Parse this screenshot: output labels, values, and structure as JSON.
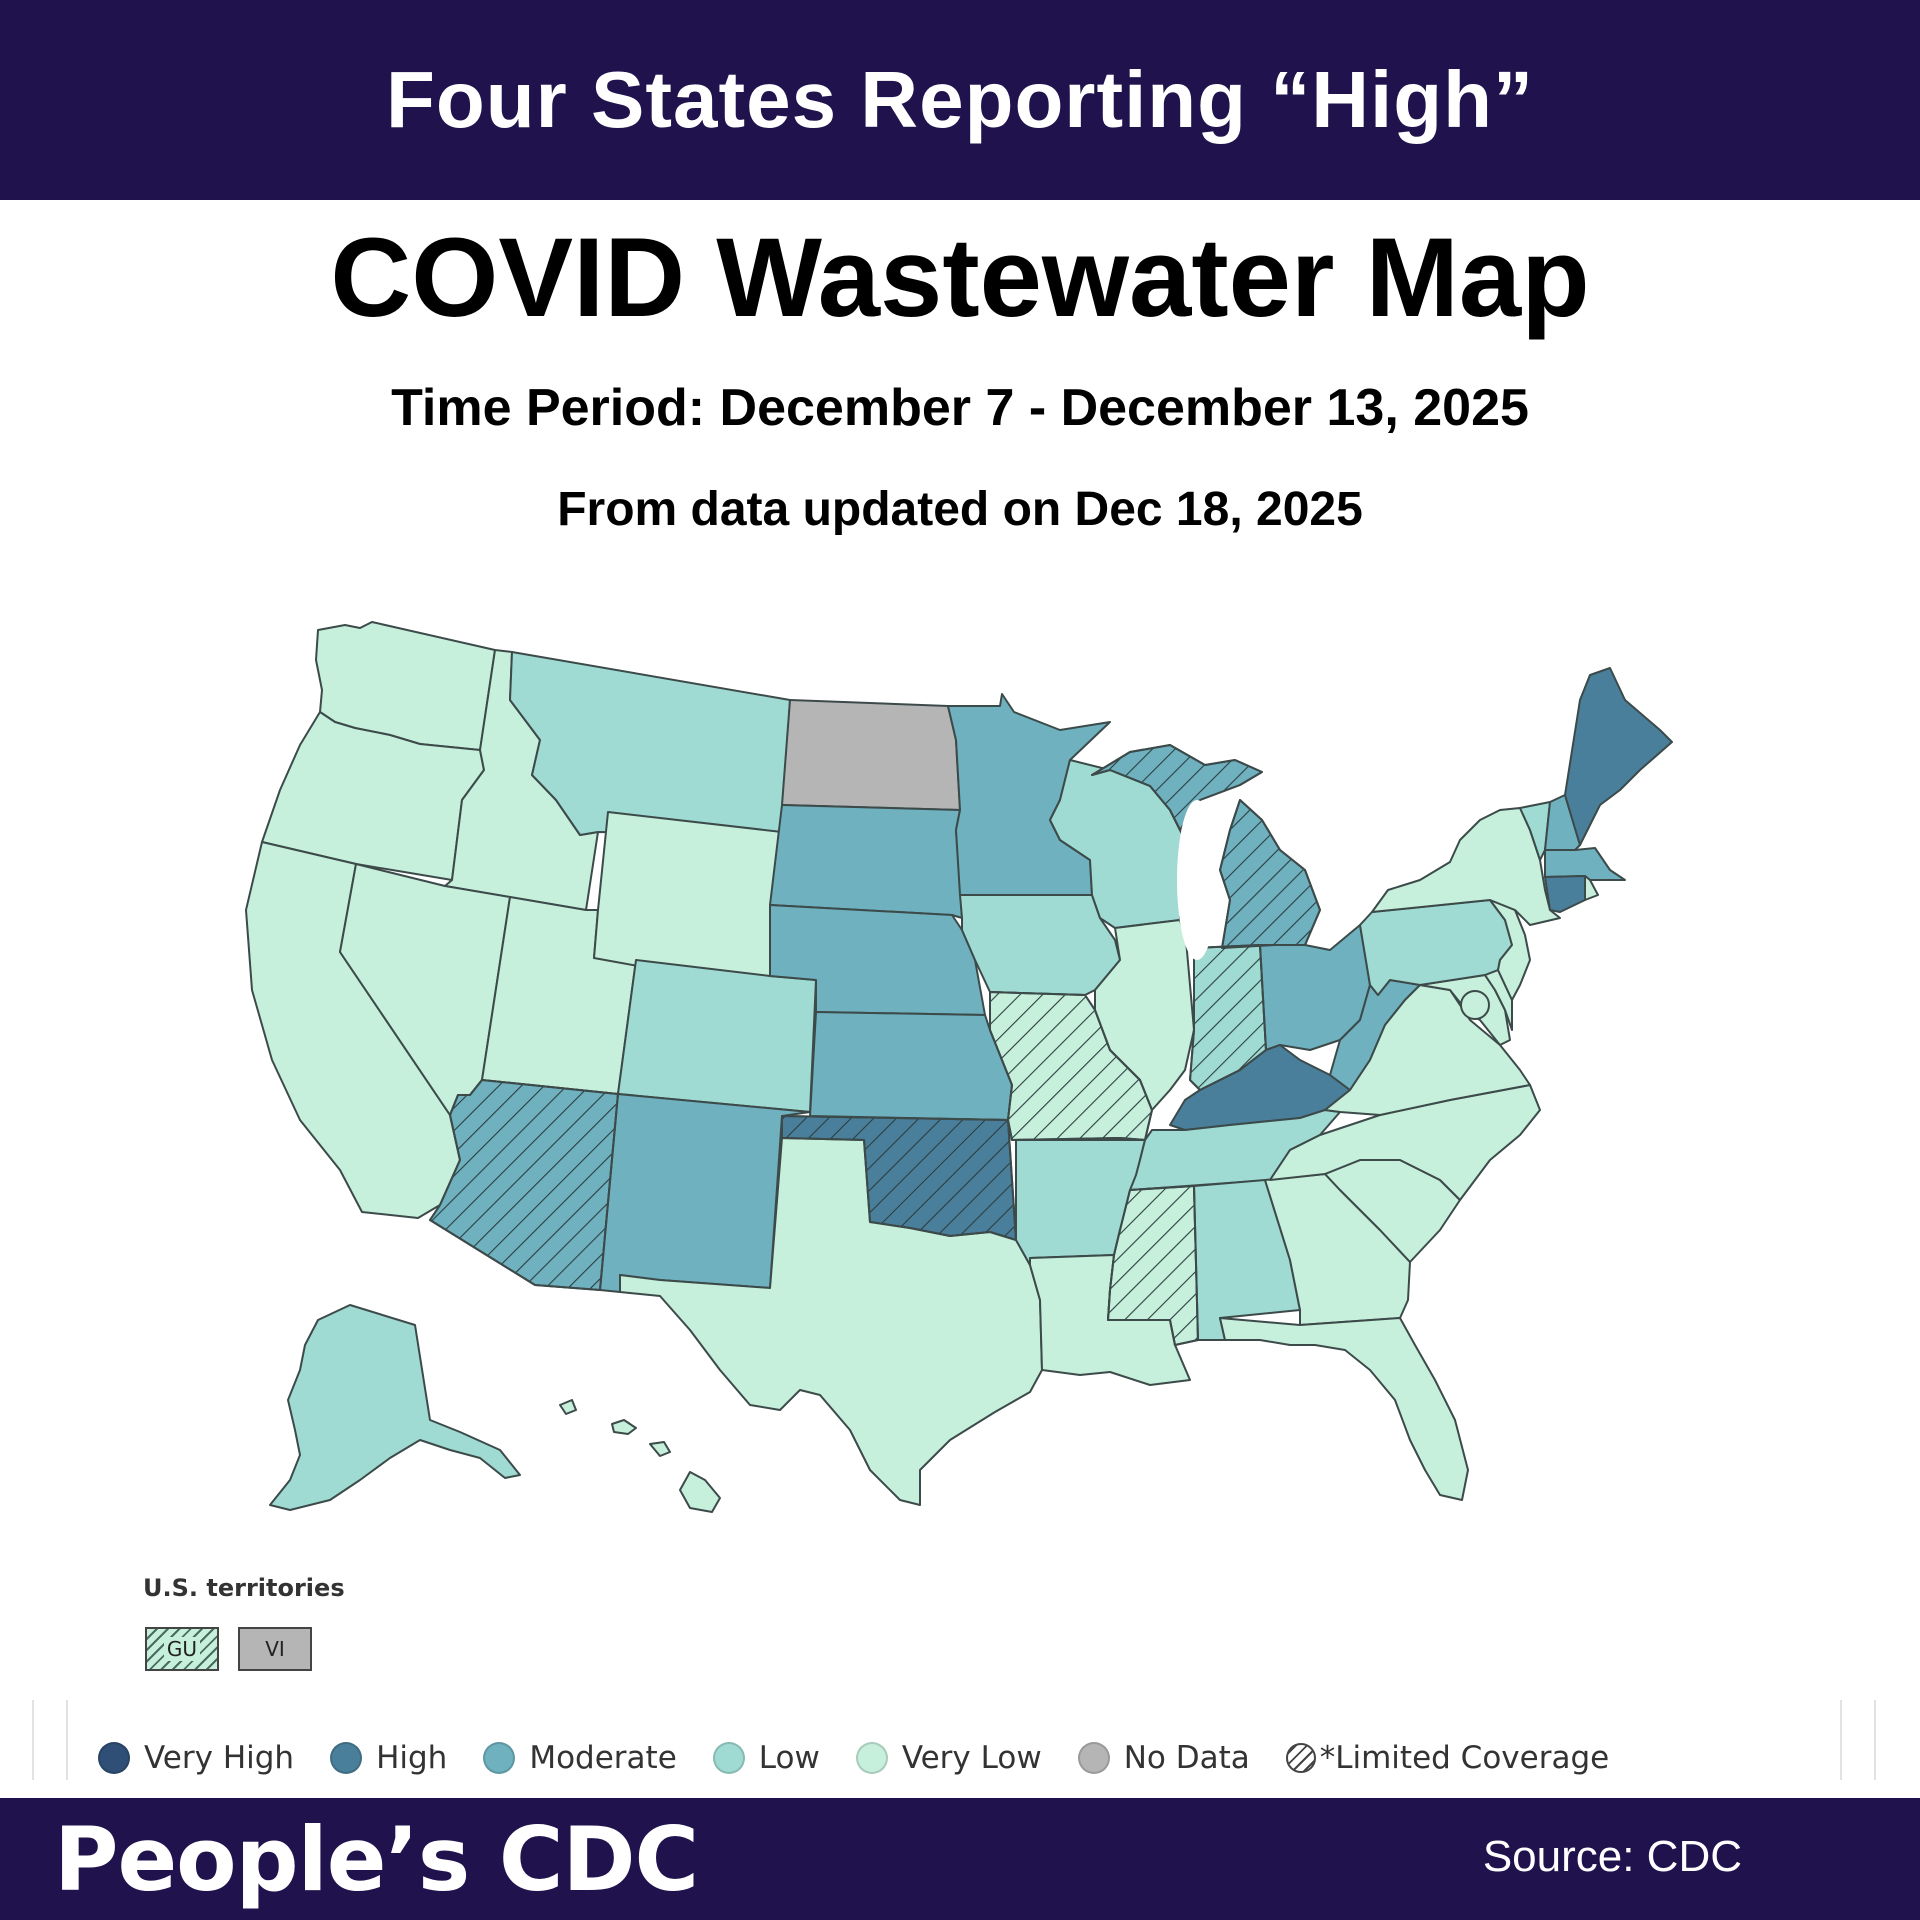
{
  "header": {
    "banner_title": "Four States Reporting “High”",
    "title": "COVID Wastewater Map",
    "time_period": "Time Period: December 7 - December 13, 2025",
    "updated": "From data updated on Dec 18, 2025"
  },
  "colors": {
    "very_high": "#2f4f76",
    "high": "#4a7f9b",
    "moderate": "#6fb1bf",
    "low": "#9fdbd2",
    "very_low": "#c6efdc",
    "no_data": "#b5b5b5",
    "banner": "#20134d"
  },
  "states": [
    {
      "code": "WA",
      "level": "very_low",
      "limited": false
    },
    {
      "code": "OR",
      "level": "very_low",
      "limited": false
    },
    {
      "code": "CA",
      "level": "very_low",
      "limited": false
    },
    {
      "code": "ID",
      "level": "very_low",
      "limited": false
    },
    {
      "code": "NV",
      "level": "very_low",
      "limited": false
    },
    {
      "code": "UT",
      "level": "very_low",
      "limited": false
    },
    {
      "code": "WY",
      "level": "very_low",
      "limited": false
    },
    {
      "code": "MT",
      "level": "low",
      "limited": false
    },
    {
      "code": "CO",
      "level": "low",
      "limited": false
    },
    {
      "code": "AZ",
      "level": "moderate",
      "limited": true
    },
    {
      "code": "NM",
      "level": "moderate",
      "limited": false
    },
    {
      "code": "ND",
      "level": "no_data",
      "limited": false
    },
    {
      "code": "SD",
      "level": "moderate",
      "limited": false
    },
    {
      "code": "NE",
      "level": "moderate",
      "limited": false
    },
    {
      "code": "KS",
      "level": "moderate",
      "limited": false
    },
    {
      "code": "OK",
      "level": "high",
      "limited": true
    },
    {
      "code": "TX",
      "level": "very_low",
      "limited": false
    },
    {
      "code": "MN",
      "level": "moderate",
      "limited": false
    },
    {
      "code": "IA",
      "level": "low",
      "limited": false
    },
    {
      "code": "MO",
      "level": "very_low",
      "limited": true
    },
    {
      "code": "AR",
      "level": "low",
      "limited": false
    },
    {
      "code": "LA",
      "level": "very_low",
      "limited": false
    },
    {
      "code": "WI",
      "level": "low",
      "limited": false
    },
    {
      "code": "IL",
      "level": "very_low",
      "limited": false
    },
    {
      "code": "MI",
      "level": "moderate",
      "limited": true
    },
    {
      "code": "IN",
      "level": "low",
      "limited": true
    },
    {
      "code": "OH",
      "level": "moderate",
      "limited": false
    },
    {
      "code": "KY",
      "level": "high",
      "limited": false
    },
    {
      "code": "TN",
      "level": "low",
      "limited": false
    },
    {
      "code": "MS",
      "level": "very_low",
      "limited": true
    },
    {
      "code": "AL",
      "level": "low",
      "limited": false
    },
    {
      "code": "GA",
      "level": "very_low",
      "limited": false
    },
    {
      "code": "FL",
      "level": "very_low",
      "limited": false
    },
    {
      "code": "SC",
      "level": "very_low",
      "limited": false
    },
    {
      "code": "NC",
      "level": "very_low",
      "limited": false
    },
    {
      "code": "VA",
      "level": "very_low",
      "limited": false
    },
    {
      "code": "WV",
      "level": "moderate",
      "limited": false
    },
    {
      "code": "PA",
      "level": "low",
      "limited": false
    },
    {
      "code": "NY",
      "level": "very_low",
      "limited": false
    },
    {
      "code": "NJ",
      "level": "very_low",
      "limited": false
    },
    {
      "code": "DE",
      "level": "very_low",
      "limited": false
    },
    {
      "code": "MD",
      "level": "very_low",
      "limited": false
    },
    {
      "code": "DC",
      "level": "very_low",
      "limited": false
    },
    {
      "code": "CT",
      "level": "high",
      "limited": false
    },
    {
      "code": "RI",
      "level": "very_low",
      "limited": false
    },
    {
      "code": "MA",
      "level": "moderate",
      "limited": false
    },
    {
      "code": "VT",
      "level": "low",
      "limited": false
    },
    {
      "code": "NH",
      "level": "moderate",
      "limited": false
    },
    {
      "code": "ME",
      "level": "high",
      "limited": false
    },
    {
      "code": "AK",
      "level": "low",
      "limited": false
    },
    {
      "code": "HI",
      "level": "very_low",
      "limited": false
    }
  ],
  "territories": {
    "label": "U.S. territories",
    "items": [
      {
        "code": "GU",
        "level": "very_low",
        "limited": true
      },
      {
        "code": "VI",
        "level": "no_data",
        "limited": false
      }
    ]
  },
  "legend": [
    {
      "label": "Very High",
      "level": "very_high"
    },
    {
      "label": "High",
      "level": "high"
    },
    {
      "label": "Moderate",
      "level": "moderate"
    },
    {
      "label": "Low",
      "level": "low"
    },
    {
      "label": "Very Low",
      "level": "very_low"
    },
    {
      "label": "No Data",
      "level": "no_data"
    }
  ],
  "legend_limited": "*Limited Coverage",
  "footer": {
    "brand": "People’s CDC",
    "source": "Source: CDC"
  }
}
